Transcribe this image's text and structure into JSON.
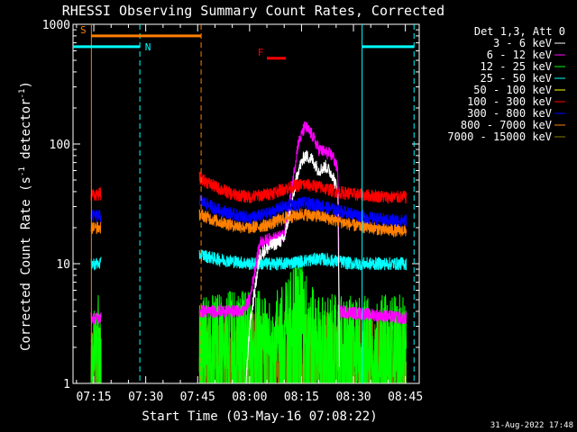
{
  "chart_data": {
    "type": "line",
    "title": "RHESSI Observing Summary Count Rates, Corrected",
    "xlabel": "Start Time (03-May-16 07:08:22)",
    "ylabel_main": "Corrected Count Rate (s",
    "ylabel_sup1": "-1",
    "ylabel_mid": " detector",
    "ylabel_sup2": "-1",
    "ylabel_end": ")",
    "yscale": "log",
    "ylim": [
      1,
      1000
    ],
    "xlim_minutes": [
      429,
      529
    ],
    "y_ticks": [
      {
        "value": 1,
        "label": "1"
      },
      {
        "value": 10,
        "label": "10"
      },
      {
        "value": 100,
        "label": "100"
      },
      {
        "value": 1000,
        "label": "1000"
      }
    ],
    "x_ticks": [
      {
        "minute": 435,
        "label": "07:15"
      },
      {
        "minute": 450,
        "label": "07:30"
      },
      {
        "minute": 465,
        "label": "07:45"
      },
      {
        "minute": 480,
        "label": "08:00"
      },
      {
        "minute": 495,
        "label": "08:15"
      },
      {
        "minute": 510,
        "label": "08:30"
      },
      {
        "minute": 525,
        "label": "08:45"
      }
    ],
    "legend_header": "Det 1,3, Att 0",
    "timestamp": "31-Aug-2022 17:48",
    "series": [
      {
        "name": "3 - 6 keV",
        "color": "#ffffff"
      },
      {
        "name": "6 - 12 keV",
        "color": "#ff00ff"
      },
      {
        "name": "12 - 25 keV",
        "color": "#00ff00"
      },
      {
        "name": "25 - 50 keV",
        "color": "#00ffff"
      },
      {
        "name": "50 - 100 keV",
        "color": "#ffff00"
      },
      {
        "name": "100 - 300 keV",
        "color": "#ff0000"
      },
      {
        "name": "300 - 800 keV",
        "color": "#0000ff"
      },
      {
        "name": "800 - 7000 keV",
        "color": "#ff8000"
      },
      {
        "name": "7000 - 15000 keV",
        "color": "#808000"
      }
    ],
    "segments": [
      [
        434.2,
        437.2
      ],
      [
        465.5,
        525.3
      ]
    ],
    "levels": [
      {
        "series": "100 - 300 keV",
        "pre": 38,
        "points": [
          [
            465.5,
            52
          ],
          [
            470,
            44
          ],
          [
            475,
            38
          ],
          [
            480,
            36
          ],
          [
            485,
            38
          ],
          [
            490,
            42
          ],
          [
            495,
            46
          ],
          [
            500,
            44
          ],
          [
            505,
            40
          ],
          [
            510,
            38
          ],
          [
            515,
            37
          ],
          [
            520,
            36
          ],
          [
            525.3,
            36
          ]
        ]
      },
      {
        "series": "300 - 800 keV",
        "pre": 25,
        "points": [
          [
            465.5,
            34
          ],
          [
            470,
            29
          ],
          [
            475,
            26
          ],
          [
            480,
            24
          ],
          [
            485,
            26
          ],
          [
            490,
            30
          ],
          [
            495,
            32
          ],
          [
            500,
            31
          ],
          [
            505,
            28
          ],
          [
            510,
            26
          ],
          [
            515,
            24
          ],
          [
            520,
            23
          ],
          [
            525.3,
            23
          ]
        ]
      },
      {
        "series": "800 - 7000 keV",
        "pre": 20,
        "points": [
          [
            465.5,
            26
          ],
          [
            470,
            23
          ],
          [
            475,
            21
          ],
          [
            480,
            20
          ],
          [
            485,
            21
          ],
          [
            490,
            24
          ],
          [
            495,
            26
          ],
          [
            500,
            25
          ],
          [
            505,
            23
          ],
          [
            510,
            21
          ],
          [
            515,
            20
          ],
          [
            520,
            19
          ],
          [
            525.3,
            19
          ]
        ]
      },
      {
        "series": "25 - 50 keV",
        "pre": 10,
        "points": [
          [
            465.5,
            12
          ],
          [
            470,
            11
          ],
          [
            480,
            10
          ],
          [
            490,
            10
          ],
          [
            500,
            11
          ],
          [
            510,
            10
          ],
          [
            525.3,
            10
          ]
        ]
      },
      {
        "series": "6 - 12 keV",
        "pre": 3.5,
        "points": [
          [
            465.5,
            4
          ],
          [
            478,
            4
          ],
          [
            480,
            5
          ],
          [
            483,
            15
          ],
          [
            486,
            16
          ],
          [
            490,
            17
          ],
          [
            492,
            40
          ],
          [
            494,
            100
          ],
          [
            496,
            140
          ],
          [
            498,
            120
          ],
          [
            500,
            90
          ],
          [
            502,
            85
          ],
          [
            504,
            80
          ],
          [
            505.5,
            60
          ],
          [
            506,
            4
          ],
          [
            525.3,
            3.5
          ]
        ]
      },
      {
        "series": "3 - 6 keV",
        "pre": 0,
        "points": [
          [
            479,
            1
          ],
          [
            480,
            3
          ],
          [
            483,
            12
          ],
          [
            486,
            14
          ],
          [
            490,
            16
          ],
          [
            492,
            30
          ],
          [
            494,
            60
          ],
          [
            496,
            80
          ],
          [
            498,
            75
          ],
          [
            500,
            60
          ],
          [
            502,
            65
          ],
          [
            504,
            55
          ],
          [
            505.5,
            40
          ],
          [
            506,
            1
          ]
        ]
      },
      {
        "series": "12 - 25 keV",
        "pre": 2.5,
        "points": [
          [
            465.5,
            2.5
          ],
          [
            490,
            3
          ],
          [
            494,
            6
          ],
          [
            496,
            4
          ],
          [
            500,
            2.5
          ],
          [
            525.3,
            2.5
          ]
        ]
      },
      {
        "series": "7000 - 15000 keV",
        "pre": 1.8,
        "points": [
          [
            465.5,
            1.8
          ],
          [
            525.3,
            1.8
          ]
        ]
      }
    ],
    "annotations": [
      {
        "label": "S",
        "color": "#ff8000",
        "start": 434.3,
        "end": 466,
        "level": 800
      },
      {
        "label": "N",
        "color": "#00ffff",
        "start": 429,
        "end": 448.3,
        "level": 650
      },
      {
        "label": "N",
        "color": "#00ffff",
        "start": 512.5,
        "end": 527.5,
        "level": 650,
        "hide_label": true
      },
      {
        "label": "F",
        "color": "#ff0000",
        "start": 485,
        "end": 490.5,
        "level": 520
      }
    ],
    "vlines": [
      {
        "minute": 434.3,
        "color": "#ff8000",
        "dash": false
      },
      {
        "minute": 466,
        "color": "#ff8000",
        "dash": true
      },
      {
        "minute": 448.3,
        "color": "#00ffff",
        "dash": true
      },
      {
        "minute": 512.5,
        "color": "#00ffff",
        "dash": false
      },
      {
        "minute": 527.5,
        "color": "#00ffff",
        "dash": true
      }
    ]
  }
}
